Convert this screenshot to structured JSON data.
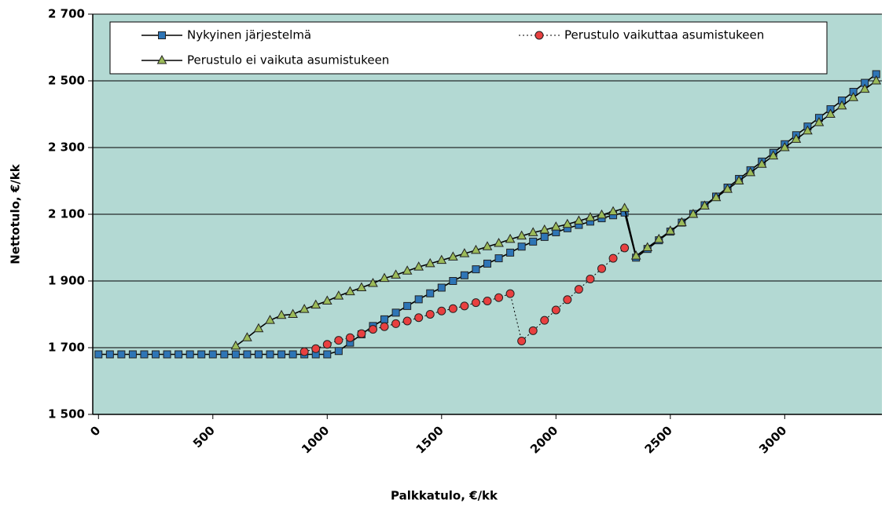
{
  "chart_data": {
    "type": "line",
    "x_label": "Palkkatulo, €/kk",
    "y_label": "Nettotulo, €/kk",
    "x": [
      0,
      50,
      100,
      150,
      200,
      250,
      300,
      350,
      400,
      450,
      500,
      550,
      600,
      650,
      700,
      750,
      800,
      850,
      900,
      950,
      1000,
      1050,
      1100,
      1150,
      1200,
      1250,
      1300,
      1350,
      1400,
      1450,
      1500,
      1550,
      1600,
      1650,
      1700,
      1750,
      1800,
      1850,
      1900,
      1950,
      2000,
      2050,
      2100,
      2150,
      2200,
      2250,
      2300,
      2350,
      2400,
      2450,
      2500,
      2550,
      2600,
      2650,
      2700,
      2750,
      2800,
      2850,
      2900,
      2950,
      3000,
      3050,
      3100,
      3150,
      3200,
      3250,
      3300,
      3350,
      3400
    ],
    "series": [
      {
        "name": "Nykyinen järjestelmä",
        "color": "#2e75b6",
        "marker": "square",
        "dash": "solid",
        "values": [
          1680,
          1680,
          1680,
          1680,
          1680,
          1680,
          1680,
          1680,
          1680,
          1680,
          1680,
          1680,
          1680,
          1680,
          1680,
          1680,
          1680,
          1680,
          1680,
          1680,
          1680,
          1690,
          1715,
          1740,
          1765,
          1785,
          1805,
          1825,
          1845,
          1863,
          1880,
          1900,
          1917,
          1935,
          1952,
          1968,
          1985,
          2003,
          2018,
          2032,
          2046,
          2058,
          2068,
          2078,
          2088,
          2097,
          2105,
          1970,
          1996,
          2022,
          2048,
          2075,
          2101,
          2127,
          2153,
          2180,
          2206,
          2232,
          2258,
          2284,
          2310,
          2337,
          2363,
          2389,
          2415,
          2441,
          2467,
          2494,
          2520
        ]
      },
      {
        "name": "Perustulo vaikuttaa asumistukeen",
        "color": "#e84040",
        "marker": "circle",
        "dash": "dotted",
        "values": [
          null,
          null,
          null,
          null,
          null,
          null,
          null,
          null,
          null,
          null,
          null,
          null,
          null,
          null,
          null,
          null,
          null,
          null,
          1688,
          1697,
          1710,
          1722,
          1730,
          1742,
          1755,
          1763,
          1772,
          1780,
          1790,
          1800,
          1810,
          1817,
          1825,
          1835,
          1840,
          1850,
          1862,
          1720,
          1751,
          1782,
          1813,
          1844,
          1875,
          1906,
          1937,
          1968,
          1999,
          null,
          null,
          null,
          null,
          null,
          null,
          null,
          null,
          null,
          null,
          null,
          null,
          null,
          null,
          null,
          null,
          null,
          null,
          null,
          null,
          null,
          null
        ]
      },
      {
        "name": "Perustulo ei vaikuta asumistukeen",
        "color": "#9bbb59",
        "marker": "triangle",
        "dash": "solid",
        "values": [
          null,
          null,
          null,
          null,
          null,
          null,
          null,
          null,
          null,
          null,
          null,
          null,
          1705,
          1730,
          1757,
          1782,
          1797,
          1800,
          1815,
          1828,
          1840,
          1855,
          1868,
          1880,
          1893,
          1908,
          1918,
          1930,
          1942,
          1952,
          1962,
          1972,
          1982,
          1992,
          2003,
          2013,
          2025,
          2035,
          2045,
          2053,
          2062,
          2070,
          2080,
          2090,
          2098,
          2108,
          2118,
          1975,
          2000,
          2025,
          2050,
          2075,
          2100,
          2125,
          2150,
          2175,
          2200,
          2225,
          2250,
          2275,
          2300,
          2325,
          2350,
          2375,
          2400,
          2425,
          2450,
          2475,
          2500
        ]
      }
    ],
    "xlim": [
      -25,
      3425
    ],
    "xticks": [
      0,
      500,
      1000,
      1500,
      2000,
      2500,
      3000
    ],
    "ylim": [
      1500,
      2700
    ],
    "yticks": [
      {
        "value": 1500,
        "label": "1 500"
      },
      {
        "value": 1700,
        "label": "1 700"
      },
      {
        "value": 1900,
        "label": "1 900"
      },
      {
        "value": 2100,
        "label": "2 100"
      },
      {
        "value": 2300,
        "label": "2 300"
      },
      {
        "value": 2500,
        "label": "2 500"
      },
      {
        "value": 2700,
        "label": "2 700"
      }
    ],
    "grid": true,
    "legend": "top",
    "plot_background": "#b3d9d3"
  }
}
